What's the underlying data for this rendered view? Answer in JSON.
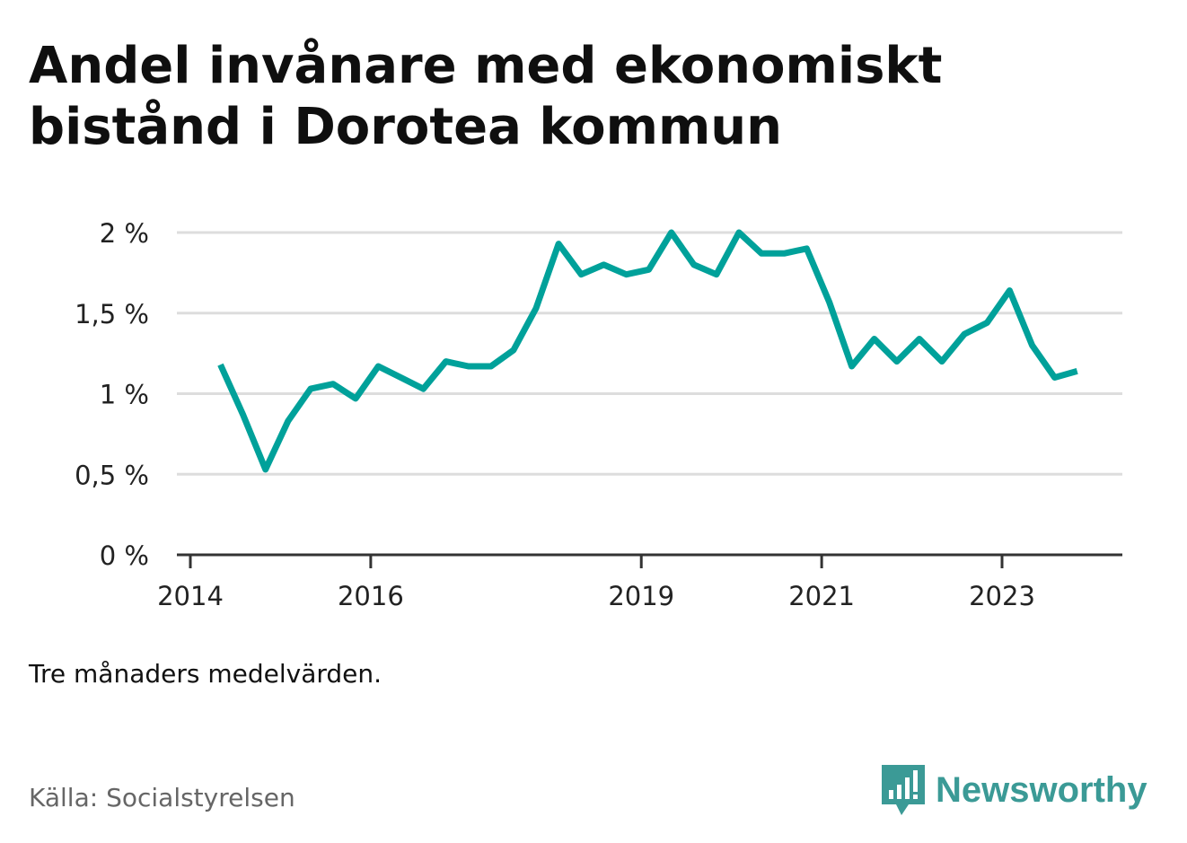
{
  "title": "Andel invånare med ekonomiskt bistånd i Dorotea kommun",
  "note": "Tre månaders medelvärden.",
  "source": "Källa: Socialstyrelsen",
  "brand": {
    "name": "Newsworthy",
    "icon": "newsworthy-logo-icon",
    "color": "#3b9a96"
  },
  "chart_data": {
    "type": "line",
    "title": "Andel invånare med ekonomiskt bistånd i Dorotea kommun",
    "xlabel": "",
    "ylabel": "",
    "x_ticks": [
      "2014",
      "2016",
      "2019",
      "2021",
      "2023"
    ],
    "y_ticks": [
      "0 %",
      "0,5 %",
      "1 %",
      "1,5 %",
      "2 %"
    ],
    "ylim": [
      0,
      2
    ],
    "grid": true,
    "color": "#00a19a",
    "series": [
      {
        "x": [
          "2014-05",
          "2014-08",
          "2014-11",
          "2015-02",
          "2015-05",
          "2015-08",
          "2015-11",
          "2016-02",
          "2016-05",
          "2016-08",
          "2016-11",
          "2017-02",
          "2017-05",
          "2017-08",
          "2017-11",
          "2018-02",
          "2018-05",
          "2018-08",
          "2018-11",
          "2019-02",
          "2019-05",
          "2019-08",
          "2019-11",
          "2020-02",
          "2020-05",
          "2020-08",
          "2020-11",
          "2021-02",
          "2021-05",
          "2021-08",
          "2021-11",
          "2022-02",
          "2022-05",
          "2022-08",
          "2022-11",
          "2023-02",
          "2023-05",
          "2023-08",
          "2023-11"
        ],
        "values": [
          1.18,
          0.87,
          0.53,
          0.83,
          1.03,
          1.06,
          0.97,
          1.17,
          1.1,
          1.03,
          1.2,
          1.17,
          1.17,
          1.27,
          1.53,
          1.93,
          1.74,
          1.8,
          1.74,
          1.77,
          2.0,
          1.8,
          1.74,
          2.0,
          1.87,
          1.87,
          1.9,
          1.57,
          1.17,
          1.34,
          1.2,
          1.34,
          1.2,
          1.37,
          1.44,
          1.64,
          1.3,
          1.1,
          1.14
        ]
      }
    ]
  }
}
